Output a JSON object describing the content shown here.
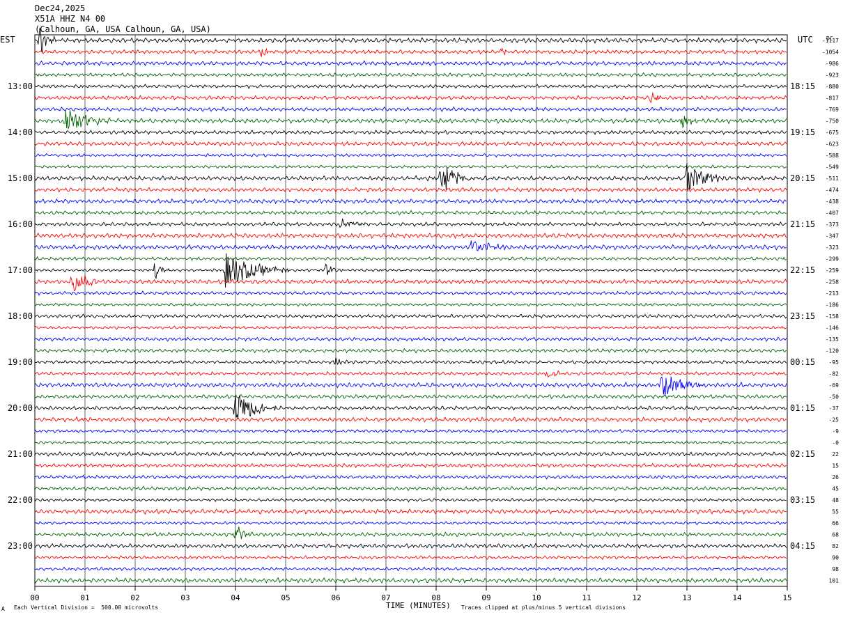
{
  "header": {
    "date": "Dec24,2025",
    "station": "X51A HHZ N4 00",
    "location": "(Calhoun, GA, USA Calhoun, GA, USA)"
  },
  "left_tz": "EST",
  "right_tz": "UTC",
  "dc_label": "DC",
  "footer": {
    "xlabel": "TIME (MINUTES)",
    "scale_note": "Each Vertical Division =  500.00 microvolts",
    "clip_note": "Traces clipped at plus/minus 5 vertical divisions",
    "corner_mark": "A"
  },
  "chart_data": {
    "type": "line",
    "xlim": [
      0,
      15
    ],
    "x_ticks": [
      "00",
      "01",
      "02",
      "03",
      "04",
      "05",
      "06",
      "07",
      "08",
      "09",
      "10",
      "11",
      "12",
      "13",
      "14",
      "15"
    ],
    "trace_colors": [
      "#000000",
      "#ff0000",
      "#0000ff",
      "#006400"
    ],
    "left_hour_labels": [
      "13:00",
      "14:00",
      "15:00",
      "16:00",
      "17:00",
      "18:00",
      "19:00",
      "20:00",
      "21:00",
      "22:00",
      "23:00"
    ],
    "right_hour_labels": [
      "18:15",
      "19:15",
      "20:15",
      "21:15",
      "22:15",
      "23:15",
      "00:15",
      "01:15",
      "02:15",
      "03:15",
      "04:15"
    ],
    "dc_offsets": [
      "-1117",
      "-1054",
      "-986",
      "-923",
      "-880",
      "-817",
      "-769",
      "-750",
      "-675",
      "-623",
      "-588",
      "-549",
      "-511",
      "-474",
      "-438",
      "-407",
      "-373",
      "-347",
      "-323",
      "-299",
      "-259",
      "-258",
      "-213",
      "-186",
      "-158",
      "-146",
      "-135",
      "-120",
      "-95",
      "-82",
      "-69",
      "-50",
      "-37",
      "-25",
      "-9",
      "-0",
      "22",
      "15",
      "26",
      "45",
      "48",
      "55",
      "66",
      "68",
      "82",
      "90",
      "98",
      "101"
    ],
    "events": [
      {
        "trace": 0,
        "minute": 0.1,
        "amp": 3.0,
        "dur": 0.35
      },
      {
        "trace": 1,
        "minute": 4.5,
        "amp": 1.2,
        "dur": 0.25
      },
      {
        "trace": 1,
        "minute": 9.3,
        "amp": 0.8,
        "dur": 0.15
      },
      {
        "trace": 5,
        "minute": 12.3,
        "amp": 1.4,
        "dur": 0.3
      },
      {
        "trace": 7,
        "minute": 0.6,
        "amp": 3.0,
        "dur": 0.9
      },
      {
        "trace": 7,
        "minute": 12.9,
        "amp": 1.6,
        "dur": 0.3
      },
      {
        "trace": 12,
        "minute": 8.1,
        "amp": 3.0,
        "dur": 0.7
      },
      {
        "trace": 12,
        "minute": 13.0,
        "amp": 2.6,
        "dur": 0.8
      },
      {
        "trace": 16,
        "minute": 6.1,
        "amp": 1.2,
        "dur": 0.5
      },
      {
        "trace": 18,
        "minute": 8.7,
        "amp": 1.2,
        "dur": 0.9
      },
      {
        "trace": 20,
        "minute": 2.4,
        "amp": 1.3,
        "dur": 0.3
      },
      {
        "trace": 20,
        "minute": 3.8,
        "amp": 3.0,
        "dur": 1.3
      },
      {
        "trace": 20,
        "minute": 5.8,
        "amp": 1.0,
        "dur": 0.4
      },
      {
        "trace": 21,
        "minute": 0.75,
        "amp": 3.0,
        "dur": 0.5
      },
      {
        "trace": 28,
        "minute": 6.0,
        "amp": 1.0,
        "dur": 0.4
      },
      {
        "trace": 29,
        "minute": 10.2,
        "amp": 1.3,
        "dur": 0.3
      },
      {
        "trace": 30,
        "minute": 12.5,
        "amp": 2.0,
        "dur": 1.0
      },
      {
        "trace": 32,
        "minute": 4.0,
        "amp": 3.0,
        "dur": 0.9
      },
      {
        "trace": 43,
        "minute": 4.0,
        "amp": 1.5,
        "dur": 0.4
      }
    ]
  }
}
